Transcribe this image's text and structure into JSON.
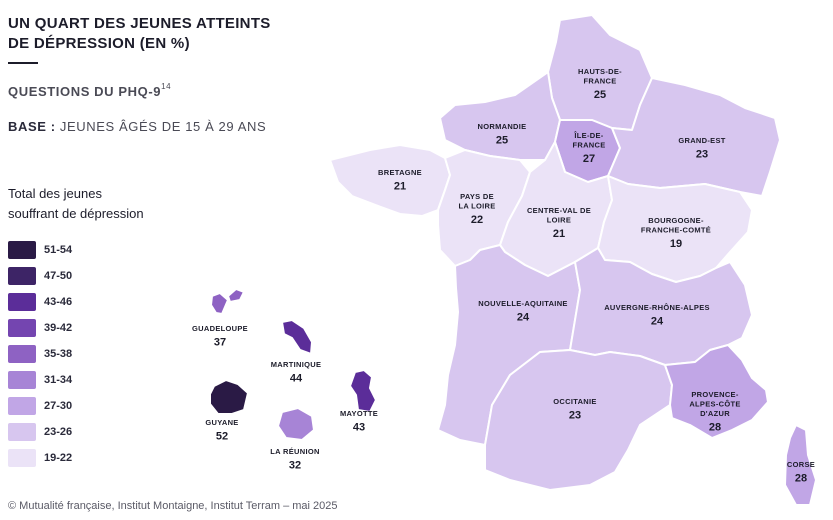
{
  "title": [
    "UN QUART DES JEUNES ATTEINTS",
    "DE DÉPRESSION (EN %)"
  ],
  "subtitle": "QUESTIONS DU PHQ-9",
  "subtitle_ref": "14",
  "base_label": "BASE :",
  "base_text": " JEUNES ÂGÉS DE 15 À 29 ANS",
  "legend_title": [
    "Total des jeunes",
    "souffrant de dépression"
  ],
  "legend": [
    {
      "label": "51-54",
      "color": "#2a1a45"
    },
    {
      "label": "47-50",
      "color": "#3d2466"
    },
    {
      "label": "43-46",
      "color": "#5b2d99"
    },
    {
      "label": "39-42",
      "color": "#7445b0"
    },
    {
      "label": "35-38",
      "color": "#8e62c3"
    },
    {
      "label": "31-34",
      "color": "#a784d6"
    },
    {
      "label": "27-30",
      "color": "#c1a6e6"
    },
    {
      "label": "23-26",
      "color": "#d7c6ef"
    },
    {
      "label": "19-22",
      "color": "#ebe3f7"
    }
  ],
  "regions": [
    {
      "id": "hauts-de-france",
      "name": [
        "HAUTS-DE-",
        "FRANCE"
      ],
      "value": "25",
      "color": "#d7c6ef"
    },
    {
      "id": "normandie",
      "name": [
        "NORMANDIE"
      ],
      "value": "25",
      "color": "#d7c6ef"
    },
    {
      "id": "ile-de-france",
      "name": [
        "ÎLE-DE-",
        "FRANCE"
      ],
      "value": "27",
      "color": "#c1a6e6"
    },
    {
      "id": "grand-est",
      "name": [
        "GRAND-EST"
      ],
      "value": "23",
      "color": "#d7c6ef"
    },
    {
      "id": "bretagne",
      "name": [
        "BRETAGNE"
      ],
      "value": "21",
      "color": "#ebe3f7"
    },
    {
      "id": "pays-de-la-loire",
      "name": [
        "PAYS DE",
        "LA LOIRE"
      ],
      "value": "22",
      "color": "#ebe3f7"
    },
    {
      "id": "centre-val-de-loire",
      "name": [
        "CENTRE-VAL DE",
        "LOIRE"
      ],
      "value": "21",
      "color": "#ebe3f7"
    },
    {
      "id": "bourgogne-franche-comte",
      "name": [
        "BOURGOGNE-",
        "FRANCHE-COMTÉ"
      ],
      "value": "19",
      "color": "#ebe3f7"
    },
    {
      "id": "nouvelle-aquitaine",
      "name": [
        "NOUVELLE-AQUITAINE"
      ],
      "value": "24",
      "color": "#d7c6ef"
    },
    {
      "id": "auvergne-rhone-alpes",
      "name": [
        "AUVERGNE-RHÔNE-ALPES"
      ],
      "value": "24",
      "color": "#d7c6ef"
    },
    {
      "id": "occitanie",
      "name": [
        "OCCITANIE"
      ],
      "value": "23",
      "color": "#d7c6ef"
    },
    {
      "id": "paca",
      "name": [
        "PROVENCE-",
        "ALPES-CÔTE",
        "D'AZUR"
      ],
      "value": "28",
      "color": "#c1a6e6"
    },
    {
      "id": "corse",
      "name": [
        "CORSE"
      ],
      "value": "28",
      "color": "#c1a6e6"
    },
    {
      "id": "guadeloupe",
      "name": [
        "GUADELOUPE"
      ],
      "value": "37",
      "color": "#8e62c3"
    },
    {
      "id": "martinique",
      "name": [
        "MARTINIQUE"
      ],
      "value": "44",
      "color": "#5b2d99"
    },
    {
      "id": "mayotte",
      "name": [
        "MAYOTTE"
      ],
      "value": "43",
      "color": "#5b2d99"
    },
    {
      "id": "guyane",
      "name": [
        "GUYANE"
      ],
      "value": "52",
      "color": "#2a1a45"
    },
    {
      "id": "la-reunion",
      "name": [
        "LA RÉUNION"
      ],
      "value": "32",
      "color": "#a784d6"
    }
  ],
  "source": "© Mutualité française, Institut Montaigne, Institut Terram – mai 2025"
}
